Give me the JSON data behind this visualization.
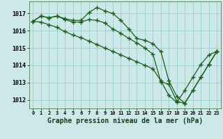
{
  "title": "Graphe pression niveau de la mer (hPa)",
  "x": [
    0,
    1,
    2,
    3,
    4,
    5,
    6,
    7,
    8,
    9,
    10,
    11,
    12,
    13,
    14,
    15,
    16,
    17,
    18,
    19,
    20,
    21,
    22,
    23
  ],
  "line1": [
    1016.55,
    1016.85,
    1016.75,
    1016.85,
    1016.7,
    1016.6,
    1016.6,
    1017.05,
    1017.35,
    1017.15,
    1017.0,
    1016.6,
    1016.1,
    1015.55,
    1015.45,
    1015.25,
    1014.8,
    1013.1,
    1012.2,
    1011.8,
    1012.55,
    1013.3,
    1014.05,
    1014.8
  ],
  "line2": [
    1016.55,
    1016.85,
    1016.75,
    1016.85,
    1016.65,
    1016.5,
    1016.5,
    1016.65,
    1016.6,
    1016.45,
    1016.1,
    1015.85,
    1015.55,
    1015.3,
    1015.0,
    1014.65,
    1013.05,
    1012.9,
    1011.9,
    1011.8,
    1012.55,
    1013.3,
    1014.05,
    1014.8
  ],
  "line3": [
    1016.55,
    1016.5,
    1016.35,
    1016.2,
    1015.95,
    1015.75,
    1015.6,
    1015.4,
    1015.2,
    1015.0,
    1014.8,
    1014.6,
    1014.4,
    1014.2,
    1014.0,
    1013.8,
    1013.1,
    1012.25,
    1011.85,
    1012.55,
    1013.3,
    1014.05,
    1014.6,
    1014.8
  ],
  "line_color": "#1a5c1a",
  "bg_color": "#cce8e8",
  "grid_color": "#99cccc",
  "ylim": [
    1011.5,
    1017.7
  ],
  "yticks": [
    1012,
    1013,
    1014,
    1015,
    1016,
    1017
  ],
  "marker": "+",
  "marker_size": 4.0,
  "linewidth": 0.9
}
